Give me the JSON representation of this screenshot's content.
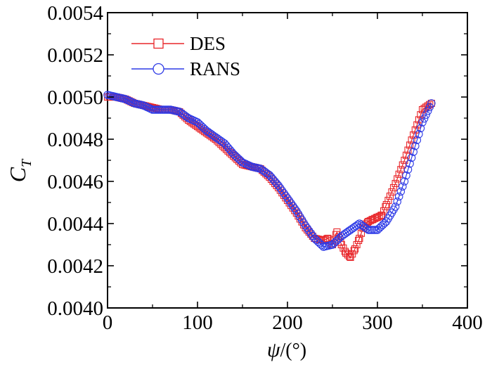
{
  "chart_data": {
    "type": "line",
    "title": "",
    "xlabel": "ψ/(°)",
    "xlabel_var": "ψ",
    "xlabel_unit": "/(°)",
    "ylabel": "C_T",
    "ylabel_main": "C",
    "ylabel_sub": "T",
    "xlim": [
      0,
      400
    ],
    "ylim": [
      0.004,
      0.0054
    ],
    "xticks": [
      "0",
      "100",
      "200",
      "300",
      "400"
    ],
    "yticks": [
      "0.0040",
      "0.0042",
      "0.0044",
      "0.0046",
      "0.0048",
      "0.0050",
      "0.0052",
      "0.0054"
    ],
    "grid": false,
    "legend_position": "top-left",
    "series": [
      {
        "name": "DES",
        "color": "#e8262a",
        "marker": "square",
        "x": [
          0,
          10,
          20,
          30,
          40,
          50,
          60,
          70,
          80,
          90,
          100,
          110,
          120,
          130,
          140,
          150,
          160,
          170,
          180,
          190,
          200,
          210,
          220,
          230,
          240,
          245,
          250,
          255,
          260,
          265,
          270,
          275,
          280,
          285,
          290,
          295,
          300,
          305,
          310,
          320,
          330,
          340,
          350,
          360
        ],
        "y": [
          0.005,
          0.005,
          0.00499,
          0.00497,
          0.00496,
          0.00495,
          0.00494,
          0.00494,
          0.00493,
          0.00489,
          0.00486,
          0.00483,
          0.0048,
          0.00476,
          0.00472,
          0.00468,
          0.00467,
          0.00466,
          0.00462,
          0.00457,
          0.00451,
          0.00445,
          0.00438,
          0.00433,
          0.00432,
          0.00433,
          0.0043,
          0.00436,
          0.0043,
          0.00426,
          0.00424,
          0.00428,
          0.00433,
          0.00439,
          0.00441,
          0.00442,
          0.00443,
          0.00444,
          0.00449,
          0.00459,
          0.0047,
          0.00482,
          0.00494,
          0.00497
        ]
      },
      {
        "name": "RANS",
        "color": "#2d3ae6",
        "marker": "circle",
        "x": [
          0,
          10,
          20,
          30,
          40,
          50,
          60,
          70,
          80,
          90,
          100,
          110,
          120,
          130,
          140,
          150,
          160,
          170,
          180,
          190,
          200,
          210,
          220,
          230,
          240,
          250,
          260,
          270,
          280,
          290,
          300,
          310,
          320,
          330,
          340,
          350,
          360
        ],
        "y": [
          0.00501,
          0.005,
          0.00499,
          0.00497,
          0.00496,
          0.00494,
          0.00494,
          0.00494,
          0.00493,
          0.0049,
          0.00488,
          0.00484,
          0.00481,
          0.00478,
          0.00473,
          0.00469,
          0.00467,
          0.00466,
          0.00463,
          0.00458,
          0.00452,
          0.00446,
          0.00439,
          0.00433,
          0.00429,
          0.0043,
          0.00434,
          0.00437,
          0.0044,
          0.00437,
          0.00437,
          0.00441,
          0.00448,
          0.0046,
          0.00474,
          0.00488,
          0.00497
        ]
      }
    ]
  }
}
